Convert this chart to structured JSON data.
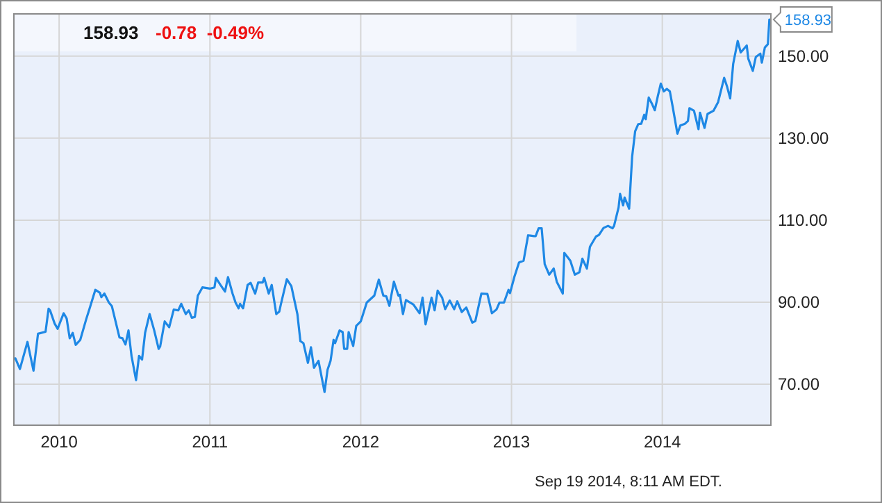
{
  "chart_data": {
    "type": "line",
    "title": "158.93",
    "subtitle": "-0.78  -0.49%",
    "annotations": [
      {
        "text": "158.93",
        "x": 2014.71,
        "y": 158.93
      },
      "Sep 19 2014, 8:11 AM EDT."
    ],
    "xlim": [
      2009.7,
      2014.72
    ],
    "xticks": [
      2010,
      2011,
      2012,
      2013,
      2014
    ],
    "ylim": [
      60,
      160.3
    ],
    "yticks": [
      {
        "value": 70,
        "label": "70.00"
      },
      {
        "value": 90,
        "label": "90.00"
      },
      {
        "value": 110,
        "label": "110.00"
      },
      {
        "value": 130,
        "label": "130.00"
      },
      {
        "value": 150,
        "label": "150.00"
      }
    ],
    "grid": true,
    "marker": "none",
    "line_style": "solid",
    "series": [
      {
        "color": "#1e88e5",
        "x": [
          2009.71,
          2009.74,
          2009.79,
          2009.83,
          2009.86,
          2009.91,
          2009.93,
          2009.94,
          2009.97,
          2009.99,
          2010.03,
          2010.05,
          2010.07,
          2010.09,
          2010.11,
          2010.14,
          2010.18,
          2010.2,
          2010.24,
          2010.27,
          2010.28,
          2010.3,
          2010.33,
          2010.35,
          2010.4,
          2010.42,
          2010.44,
          2010.46,
          2010.48,
          2010.51,
          2010.53,
          2010.55,
          2010.57,
          2010.6,
          2010.63,
          2010.66,
          2010.67,
          2010.7,
          2010.73,
          2010.76,
          2010.79,
          2010.81,
          2010.84,
          2010.86,
          2010.88,
          2010.9,
          2010.92,
          2010.95,
          2011.0,
          2011.03,
          2011.04,
          2011.07,
          2011.1,
          2011.12,
          2011.15,
          2011.17,
          2011.19,
          2011.2,
          2011.22,
          2011.25,
          2011.27,
          2011.3,
          2011.32,
          2011.35,
          2011.36,
          2011.39,
          2011.41,
          2011.44,
          2011.46,
          2011.47,
          2011.51,
          2011.54,
          2011.58,
          2011.6,
          2011.62,
          2011.65,
          2011.67,
          2011.69,
          2011.72,
          2011.76,
          2011.78,
          2011.8,
          2011.82,
          2011.83,
          2011.86,
          2011.88,
          2011.89,
          2011.91,
          2011.92,
          2011.95,
          2011.97,
          2012.0,
          2012.04,
          2012.09,
          2012.12,
          2012.15,
          2012.17,
          2012.19,
          2012.22,
          2012.25,
          2012.26,
          2012.28,
          2012.3,
          2012.35,
          2012.39,
          2012.41,
          2012.43,
          2012.47,
          2012.49,
          2012.51,
          2012.54,
          2012.56,
          2012.59,
          2012.62,
          2012.64,
          2012.67,
          2012.7,
          2012.74,
          2012.76,
          2012.8,
          2012.84,
          2012.87,
          2012.9,
          2012.92,
          2012.95,
          2012.98,
          2012.99,
          2013.02,
          2013.05,
          2013.08,
          2013.11,
          2013.15,
          2013.16,
          2013.18,
          2013.2,
          2013.22,
          2013.25,
          2013.28,
          2013.3,
          2013.34,
          2013.35,
          2013.39,
          2013.42,
          2013.45,
          2013.47,
          2013.5,
          2013.52,
          2013.56,
          2013.58,
          2013.61,
          2013.64,
          2013.67,
          2013.68,
          2013.71,
          2013.72,
          2013.74,
          2013.75,
          2013.78,
          2013.8,
          2013.82,
          2013.84,
          2013.86,
          2013.88,
          2013.89,
          2013.91,
          2013.93,
          2013.95,
          2013.97,
          2013.99,
          2014.01,
          2014.03,
          2014.05,
          2014.07,
          2014.1,
          2014.12,
          2014.15,
          2014.17,
          2014.18,
          2014.21,
          2014.24,
          2014.25,
          2014.28,
          2014.3,
          2014.34,
          2014.37,
          2014.41,
          2014.43,
          2014.45,
          2014.47,
          2014.5,
          2014.52,
          2014.56,
          2014.57,
          2014.6,
          2014.62,
          2014.65,
          2014.66,
          2014.68,
          2014.7,
          2014.71
        ],
        "values": [
          76.3,
          73.7,
          80.3,
          73.3,
          82.3,
          82.8,
          88.4,
          88.0,
          84.8,
          83.5,
          87.3,
          86.0,
          81.2,
          82.5,
          79.6,
          80.8,
          85.9,
          88.2,
          93.0,
          92.3,
          91.2,
          92.1,
          89.9,
          89.0,
          81.4,
          81.2,
          79.7,
          83.1,
          76.9,
          71.0,
          76.9,
          76.0,
          82.5,
          87.1,
          83.2,
          78.6,
          79.2,
          85.3,
          83.9,
          88.2,
          88.0,
          89.6,
          87.1,
          88.0,
          86.2,
          86.4,
          91.6,
          93.6,
          93.3,
          93.6,
          95.9,
          94.2,
          92.6,
          96.1,
          92.1,
          89.9,
          88.5,
          89.6,
          88.5,
          94.2,
          94.7,
          92.1,
          94.8,
          94.8,
          95.9,
          92.1,
          94.2,
          87.1,
          87.7,
          89.4,
          95.6,
          93.9,
          87.1,
          80.5,
          80.0,
          75.2,
          79.0,
          74.0,
          75.7,
          68.1,
          73.5,
          75.7,
          80.8,
          80.0,
          83.1,
          82.7,
          78.6,
          78.6,
          82.7,
          79.3,
          84.2,
          85.3,
          89.9,
          91.6,
          95.5,
          91.6,
          91.4,
          89.1,
          95.0,
          91.6,
          91.8,
          87.1,
          90.5,
          89.4,
          87.3,
          91.1,
          84.6,
          91.1,
          88.0,
          92.8,
          91.1,
          88.3,
          90.4,
          88.3,
          90.2,
          87.6,
          88.7,
          85.0,
          85.4,
          92.1,
          92.0,
          87.3,
          88.2,
          89.9,
          89.9,
          93.0,
          92.2,
          96.3,
          99.7,
          100.1,
          106.3,
          106.1,
          106.1,
          108.0,
          108.0,
          99.3,
          96.7,
          98.2,
          95.0,
          92.1,
          102.0,
          100.1,
          96.7,
          97.3,
          100.6,
          98.2,
          103.5,
          106.0,
          106.4,
          108.1,
          108.6,
          108.0,
          108.6,
          113.1,
          116.4,
          113.6,
          115.5,
          112.8,
          125.5,
          131.7,
          133.4,
          133.5,
          135.7,
          134.6,
          139.9,
          138.5,
          136.8,
          140.2,
          143.3,
          141.4,
          142.0,
          141.4,
          137.4,
          131.1,
          133.1,
          133.5,
          134.2,
          137.3,
          136.7,
          132.2,
          136.2,
          132.5,
          135.9,
          136.7,
          138.8,
          144.7,
          142.5,
          139.7,
          148.1,
          153.7,
          150.9,
          152.6,
          149.4,
          146.4,
          149.8,
          150.6,
          148.4,
          152.1,
          152.9,
          158.93
        ]
      }
    ]
  }
}
